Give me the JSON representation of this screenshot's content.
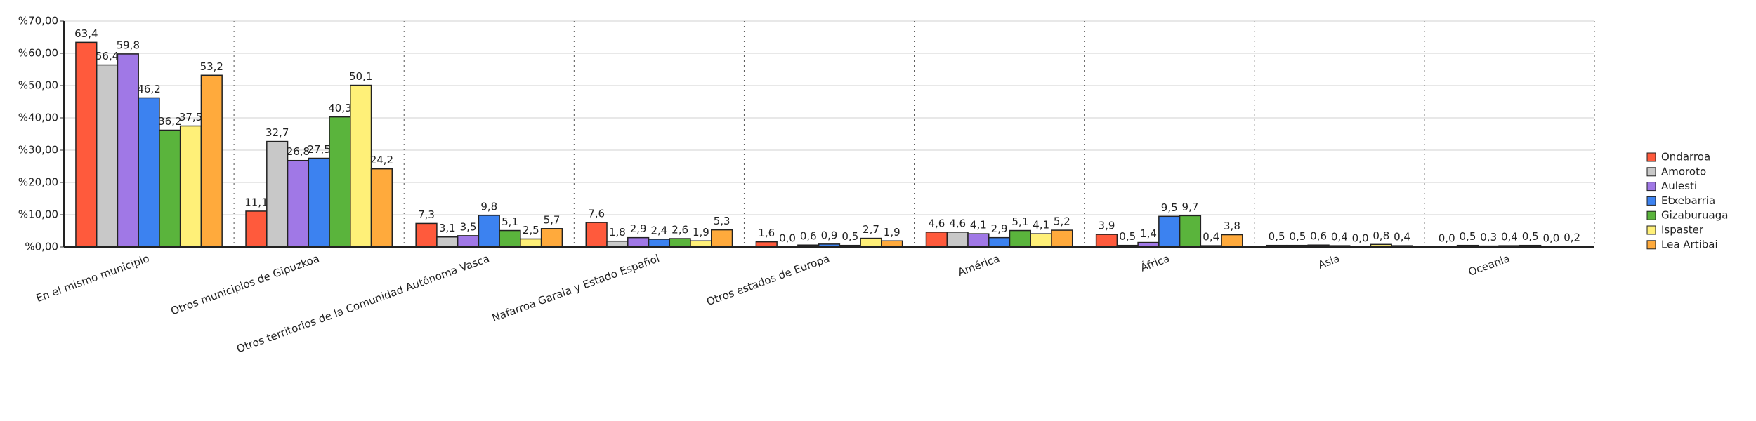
{
  "chart_data": {
    "type": "bar",
    "categories": [
      "En el mismo municipio",
      "Otros municipios de Gipuzkoa",
      "Otros territorios de la Comunidad Autónoma Vasca",
      "Nafarroa Garaia y Estado Español",
      "Otros estados de Europa",
      "América",
      "África",
      "Asia",
      "Oceania"
    ],
    "series": [
      {
        "name": "Ondarroa",
        "color": "#ff5a3c",
        "values": [
          63.4,
          11.1,
          7.3,
          7.6,
          1.6,
          4.6,
          3.9,
          0.5,
          0.0
        ],
        "value_labels": [
          "63,4",
          "11,1",
          "7,3",
          "7,6",
          "1,6",
          "4,6",
          "3,9",
          "0,5",
          "0,0"
        ]
      },
      {
        "name": "Amoroto",
        "color": "#c8c8c8",
        "values": [
          56.4,
          32.7,
          3.1,
          1.8,
          0.0,
          4.6,
          0.5,
          0.5,
          0.5
        ],
        "value_labels": [
          "56,4",
          "32,7",
          "3,1",
          "1,8",
          "0,0",
          "4,6",
          "0,5",
          "0,5",
          "0,5"
        ]
      },
      {
        "name": "Aulesti",
        "color": "#a078e6",
        "values": [
          59.8,
          26.8,
          3.5,
          2.9,
          0.6,
          4.1,
          1.4,
          0.6,
          0.3
        ],
        "value_labels": [
          "59,8",
          "26,8",
          "3,5",
          "2,9",
          "0,6",
          "4,1",
          "1,4",
          "0,6",
          "0,3"
        ]
      },
      {
        "name": "Etxebarria",
        "color": "#3c82f0",
        "values": [
          46.2,
          27.5,
          9.8,
          2.4,
          0.9,
          2.9,
          9.5,
          0.4,
          0.4
        ],
        "value_labels": [
          "46,2",
          "27,5",
          "9,8",
          "2,4",
          "0,9",
          "2,9",
          "9,5",
          "0,4",
          "0,4"
        ]
      },
      {
        "name": "Gizaburuaga",
        "color": "#5ab43c",
        "values": [
          36.2,
          40.3,
          5.1,
          2.6,
          0.5,
          5.1,
          9.7,
          0.0,
          0.5
        ],
        "value_labels": [
          "36,2",
          "40,3",
          "5,1",
          "2,6",
          "0,5",
          "5,1",
          "9,7",
          "0,0",
          "0,5"
        ]
      },
      {
        "name": "Ispaster",
        "color": "#fff078",
        "values": [
          37.5,
          50.1,
          2.5,
          1.9,
          2.7,
          4.1,
          0.4,
          0.8,
          0.0
        ],
        "value_labels": [
          "37,5",
          "50,1",
          "2,5",
          "1,9",
          "2,7",
          "4,1",
          "0,4",
          "0,8",
          "0,0"
        ]
      },
      {
        "name": "Lea Artibai",
        "color": "#ffaa3c",
        "values": [
          53.2,
          24.2,
          5.7,
          5.3,
          1.9,
          5.2,
          3.8,
          0.4,
          0.2
        ],
        "value_labels": [
          "53,2",
          "24,2",
          "5,7",
          "5,3",
          "1,9",
          "5,2",
          "3,8",
          "0,4",
          "0,2"
        ]
      }
    ],
    "ylim": [
      0,
      70
    ],
    "yticks": [
      {
        "value": 0,
        "label": "%0,00"
      },
      {
        "value": 10,
        "label": "%10,00"
      },
      {
        "value": 20,
        "label": "%20,00"
      },
      {
        "value": 30,
        "label": "%30,00"
      },
      {
        "value": 40,
        "label": "%40,00"
      },
      {
        "value": 50,
        "label": "%50,00"
      },
      {
        "value": 60,
        "label": "%60,00"
      },
      {
        "value": 70,
        "label": "%70,00"
      }
    ],
    "grid": true,
    "legend": "right"
  }
}
